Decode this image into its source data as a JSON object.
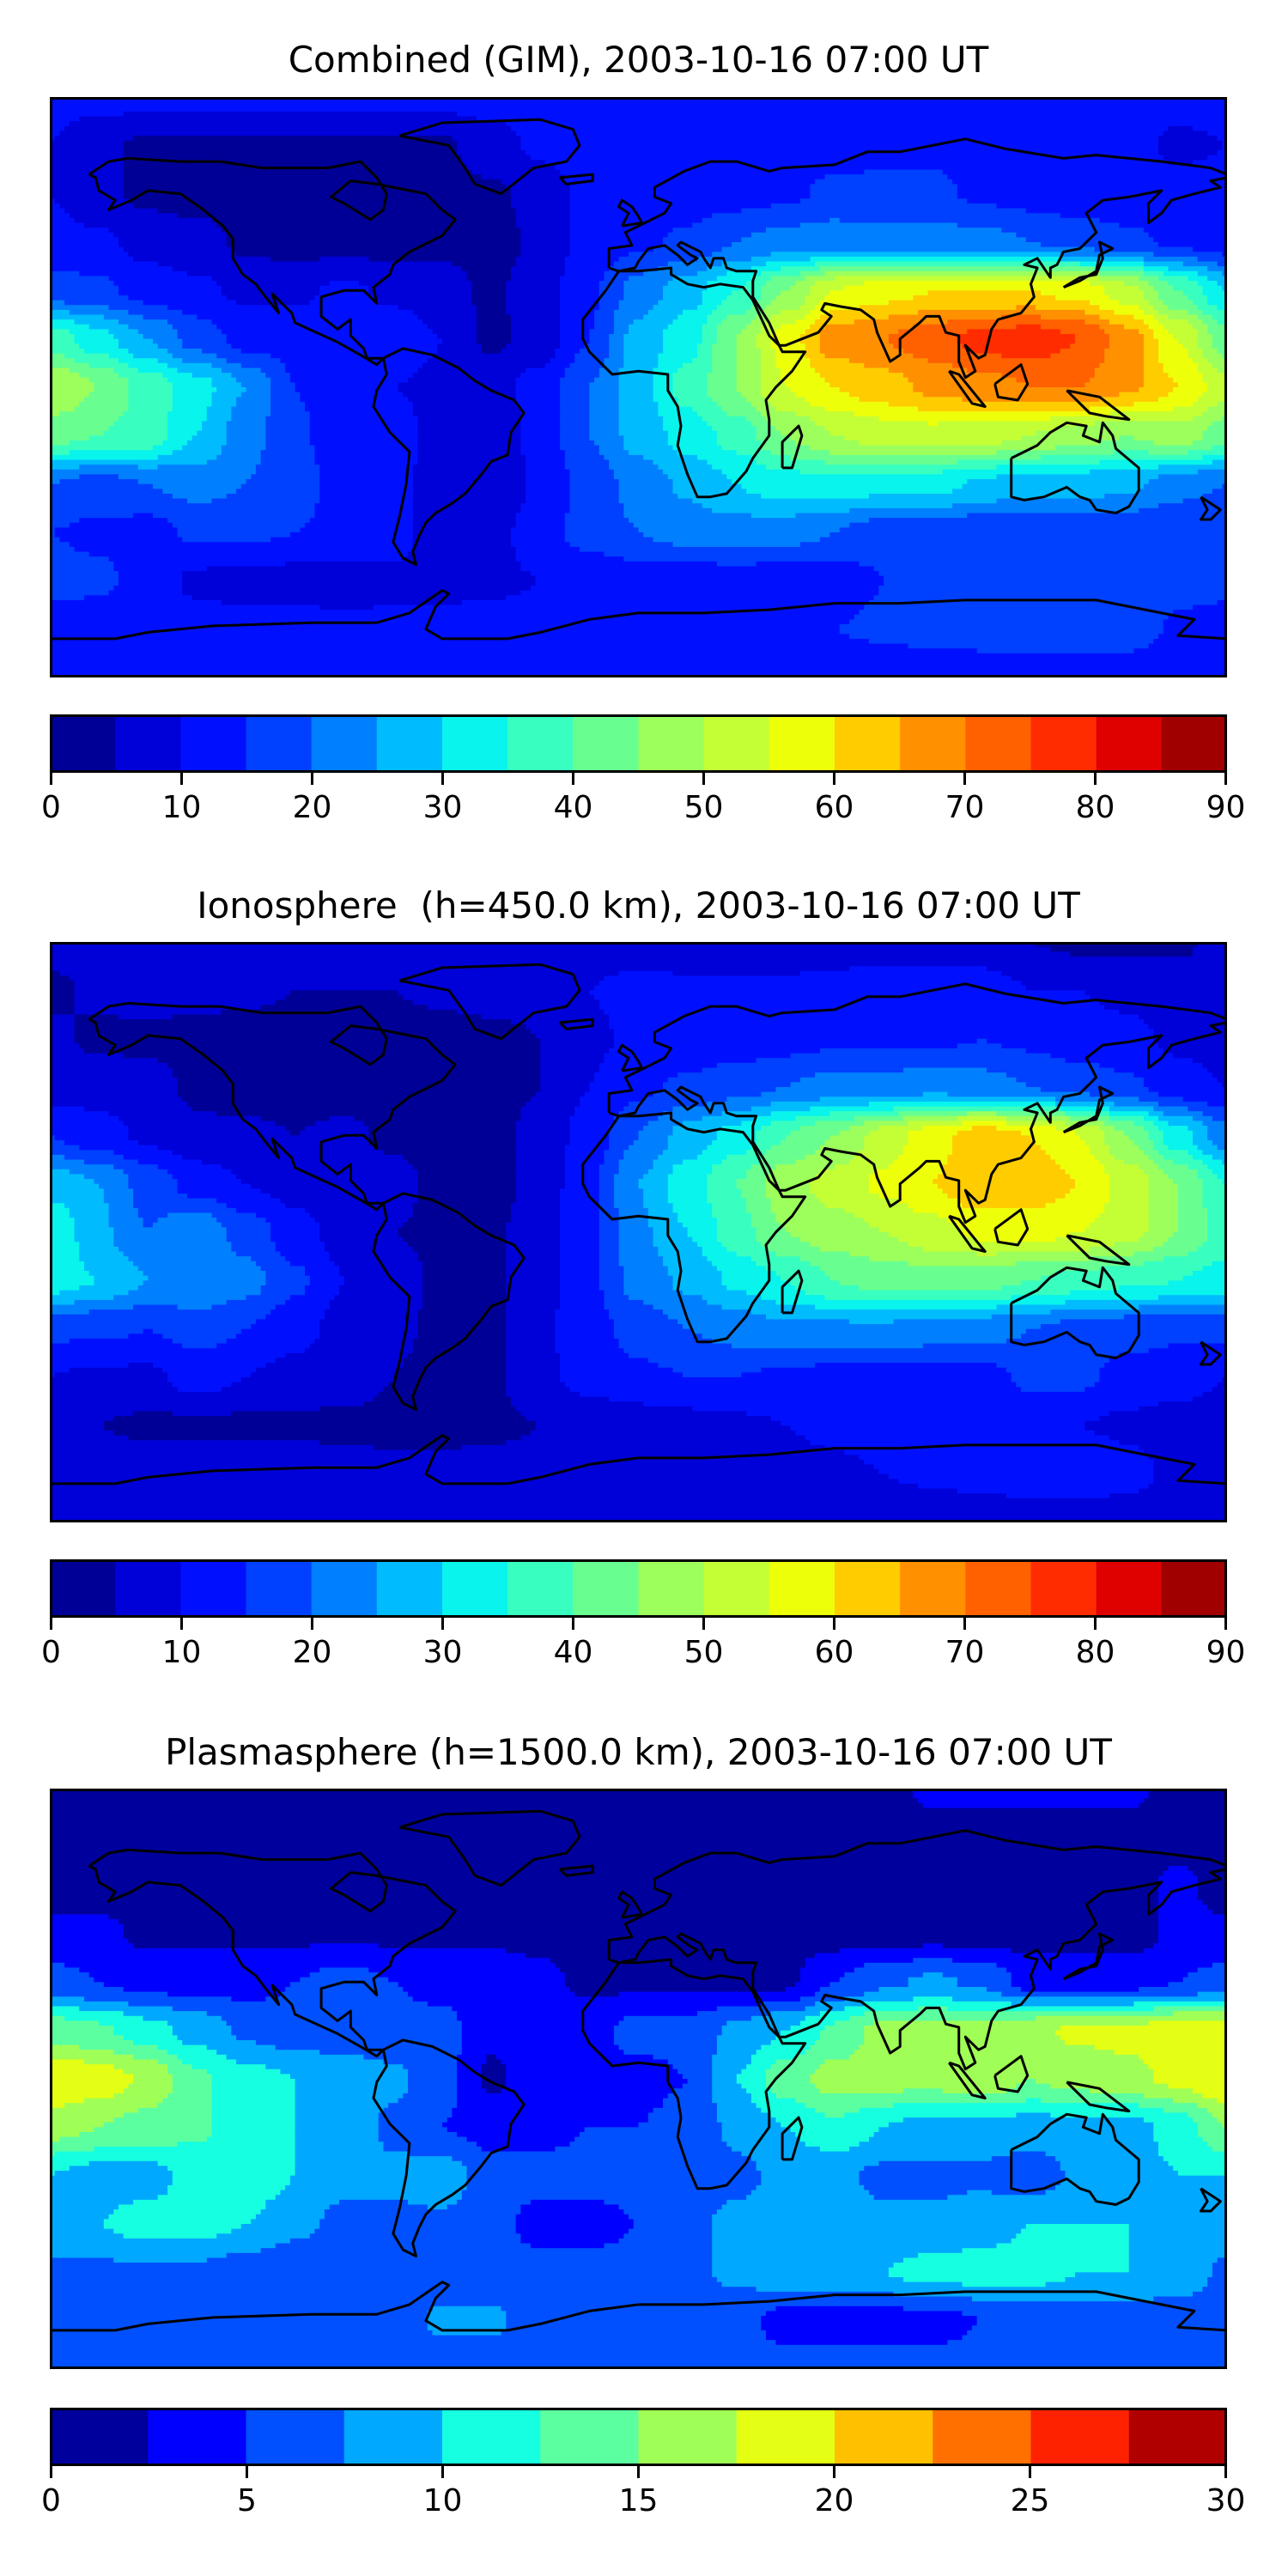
{
  "lon": [
    -180,
    -165,
    -150,
    -135,
    -120,
    -105,
    -90,
    -75,
    -60,
    -45,
    -30,
    -15,
    0,
    15,
    30,
    45,
    60,
    75,
    90,
    105,
    120,
    135,
    150,
    165,
    180
  ],
  "lat": [
    90,
    75,
    60,
    45,
    30,
    15,
    0,
    -15,
    -30,
    -45,
    -60,
    -75,
    -90
  ],
  "chart_data": [
    {
      "type": "heatmap",
      "title": "Combined (GIM), 2003-10-16 07:00 UT",
      "xlim": [
        -180,
        180
      ],
      "ylim": [
        -90,
        90
      ],
      "levels": [
        0,
        5,
        10,
        15,
        20,
        25,
        30,
        35,
        40,
        45,
        50,
        55,
        60,
        65,
        70,
        75,
        80,
        85,
        90
      ],
      "colors": [
        "#000096",
        "#0000d8",
        "#0010ff",
        "#0040ff",
        "#0080ff",
        "#00bcff",
        "#08f4ec",
        "#38ffc0",
        "#68ff90",
        "#9cff5c",
        "#c4ff36",
        "#eeff0a",
        "#ffcc00",
        "#ff9000",
        "#ff6000",
        "#ff2c00",
        "#df0000",
        "#a00000"
      ],
      "colorbar_ticks": [
        "0",
        "10",
        "20",
        "30",
        "40",
        "50",
        "60",
        "70",
        "80",
        "90"
      ],
      "values": [
        [
          12,
          12,
          12,
          12,
          12,
          12,
          12,
          12,
          12,
          12,
          12,
          12,
          12,
          12,
          12,
          12,
          12,
          12,
          12,
          12,
          12,
          12,
          12,
          12,
          12
        ],
        [
          10,
          6,
          4,
          4,
          4,
          4,
          4,
          4,
          4,
          8,
          11,
          12,
          12,
          12,
          12,
          13,
          13,
          14,
          14,
          12,
          12,
          12,
          12,
          9,
          10
        ],
        [
          10,
          6,
          4,
          3,
          3,
          3,
          3,
          3,
          4,
          4,
          7,
          12,
          12,
          12,
          13,
          14,
          16,
          16,
          16,
          14,
          13,
          12,
          12,
          12,
          12
        ],
        [
          12,
          11,
          8,
          7,
          4,
          3,
          3,
          3,
          4,
          3,
          6,
          12,
          14,
          16,
          20,
          22,
          23,
          22,
          22,
          22,
          20,
          18,
          16,
          14,
          12
        ],
        [
          17,
          16,
          13,
          11,
          9,
          9,
          11,
          9,
          7,
          4,
          8,
          14,
          22,
          28,
          35,
          45,
          55,
          58,
          60,
          60,
          60,
          58,
          52,
          40,
          30
        ],
        [
          38,
          32,
          25,
          18,
          13,
          13,
          12,
          13,
          10,
          4,
          7,
          15,
          27,
          33,
          45,
          57,
          68,
          70,
          73,
          77,
          78,
          75,
          67,
          55,
          42
        ],
        [
          50,
          45,
          38,
          32,
          25,
          15,
          12,
          10,
          9,
          8,
          12,
          20,
          28,
          37,
          45,
          55,
          60,
          63,
          66,
          68,
          70,
          70,
          66,
          60,
          52
        ],
        [
          42,
          40,
          38,
          30,
          22,
          16,
          12,
          12,
          8,
          6,
          12,
          20,
          27,
          32,
          37,
          45,
          50,
          52,
          53,
          52,
          50,
          47,
          45,
          48,
          42
        ],
        [
          20,
          18,
          20,
          22,
          20,
          17,
          13,
          12,
          7,
          5,
          11,
          17,
          22,
          26,
          30,
          33,
          33,
          32,
          32,
          29,
          27,
          27,
          26,
          22,
          20
        ],
        [
          15,
          14,
          13,
          16,
          16,
          15,
          14,
          12,
          7,
          8,
          13,
          17,
          20,
          22,
          23,
          22,
          20,
          17,
          17,
          16,
          16,
          17,
          16,
          15,
          15
        ],
        [
          17,
          16,
          13,
          9,
          8,
          8,
          8,
          9,
          9,
          9,
          10,
          11,
          12,
          12,
          12,
          12,
          12,
          15,
          17,
          18,
          18,
          18,
          18,
          17,
          17
        ],
        [
          12,
          12,
          12,
          12,
          12,
          12,
          11,
          11,
          11,
          12,
          12,
          12,
          12,
          13,
          13,
          14,
          15,
          16,
          17,
          18,
          20,
          20,
          18,
          14,
          12
        ],
        [
          11,
          11,
          11,
          11,
          11,
          11,
          11,
          11,
          11,
          11,
          11,
          11,
          11,
          11,
          11,
          11,
          11,
          11,
          11,
          11,
          11,
          11,
          11,
          11,
          11
        ]
      ]
    },
    {
      "type": "heatmap",
      "title": "Ionosphere  (h=450.0 km), 2003-10-16 07:00 UT",
      "xlim": [
        -180,
        180
      ],
      "ylim": [
        -90,
        90
      ],
      "levels": [
        0,
        5,
        10,
        15,
        20,
        25,
        30,
        35,
        40,
        45,
        50,
        55,
        60,
        65,
        70,
        75,
        80,
        85,
        90
      ],
      "colors": [
        "#000096",
        "#0000d8",
        "#0010ff",
        "#0040ff",
        "#0080ff",
        "#00bcff",
        "#08f4ec",
        "#38ffc0",
        "#68ff90",
        "#9cff5c",
        "#c4ff36",
        "#eeff0a",
        "#ffcc00",
        "#ff9000",
        "#ff6000",
        "#ff2c00",
        "#df0000",
        "#a00000"
      ],
      "colorbar_ticks": [
        "0",
        "10",
        "20",
        "30",
        "40",
        "50",
        "60",
        "70",
        "80",
        "90"
      ],
      "values": [
        [
          7,
          7,
          7,
          7,
          7,
          7,
          7,
          7,
          7,
          7,
          7,
          7,
          7,
          7,
          7,
          7,
          7,
          7,
          7,
          6,
          5,
          4,
          4,
          4,
          7
        ],
        [
          4,
          6,
          7,
          7,
          6,
          5,
          5,
          5,
          6,
          8,
          8,
          10,
          12,
          11,
          11,
          11,
          12,
          13,
          13,
          13,
          10,
          10,
          9,
          8,
          6
        ],
        [
          6,
          4,
          4,
          3,
          3,
          3,
          3,
          3,
          3,
          3,
          5,
          9,
          11,
          11,
          12,
          13,
          14,
          14,
          14,
          15,
          14,
          12,
          11,
          9,
          8
        ],
        [
          8,
          8,
          7,
          4,
          3,
          3,
          3,
          3,
          3,
          3,
          5,
          10,
          14,
          16,
          18,
          20,
          22,
          22,
          23,
          22,
          20,
          18,
          16,
          12,
          10
        ],
        [
          15,
          12,
          9,
          6,
          6,
          5,
          6,
          4,
          3,
          3,
          7,
          12,
          20,
          27,
          32,
          40,
          45,
          52,
          58,
          63,
          60,
          55,
          45,
          32,
          22
        ],
        [
          28,
          25,
          18,
          13,
          10,
          8,
          7,
          7,
          3,
          3,
          7,
          14,
          25,
          33,
          40,
          48,
          52,
          56,
          60,
          65,
          63,
          60,
          53,
          45,
          35
        ],
        [
          35,
          26,
          20,
          24,
          18,
          12,
          8,
          5,
          4,
          4,
          8,
          14,
          24,
          30,
          38,
          45,
          48,
          50,
          53,
          56,
          57,
          55,
          52,
          45,
          38
        ],
        [
          33,
          30,
          25,
          25,
          22,
          16,
          10,
          7,
          4,
          4,
          8,
          14,
          22,
          26,
          31,
          35,
          40,
          42,
          43,
          42,
          40,
          38,
          36,
          35,
          33
        ],
        [
          16,
          16,
          15,
          17,
          15,
          12,
          8,
          6,
          4,
          4,
          9,
          13,
          17,
          20,
          22,
          24,
          24,
          24,
          23,
          22,
          20,
          18,
          17,
          16,
          16
        ],
        [
          10,
          9,
          9,
          12,
          10,
          8,
          7,
          5,
          3,
          4,
          9,
          12,
          14,
          15,
          15,
          14,
          13,
          12,
          12,
          13,
          16,
          16,
          13,
          12,
          10
        ],
        [
          7,
          5,
          4,
          4,
          4,
          4,
          4,
          4,
          4,
          4,
          5,
          6,
          7,
          8,
          9,
          10,
          11,
          12,
          12,
          12,
          11,
          10,
          9,
          8,
          7
        ],
        [
          6,
          8,
          9,
          9,
          8,
          8,
          7,
          6,
          6,
          7,
          7,
          8,
          8,
          8,
          8,
          8,
          9,
          10,
          11,
          12,
          14,
          15,
          12,
          8,
          6
        ],
        [
          6,
          6,
          6,
          6,
          6,
          6,
          6,
          6,
          6,
          6,
          6,
          6,
          6,
          6,
          6,
          6,
          6,
          6,
          6,
          6,
          6,
          6,
          6,
          6,
          6
        ]
      ]
    },
    {
      "type": "heatmap",
      "title": "Plasmasphere (h=1500.0 km), 2003-10-16 07:00 UT",
      "xlim": [
        -180,
        180
      ],
      "ylim": [
        -90,
        90
      ],
      "levels": [
        0,
        2.5,
        5,
        7.5,
        10,
        12.5,
        15,
        17.5,
        20,
        22.5,
        25,
        27.5,
        30
      ],
      "colors": [
        "#00009c",
        "#0000ff",
        "#0050ff",
        "#00a8ff",
        "#16ffe0",
        "#5cffa0",
        "#a0ff56",
        "#e4ff14",
        "#ffc000",
        "#ff7000",
        "#ff2200",
        "#b00000"
      ],
      "colorbar_ticks": [
        "0",
        "5",
        "10",
        "15",
        "20",
        "25",
        "30"
      ],
      "values": [
        [
          1.5,
          1.5,
          1.5,
          1.5,
          1.5,
          1.5,
          1.5,
          1.5,
          1.5,
          1.5,
          1.5,
          1.5,
          1.5,
          1.5,
          1.5,
          1.5,
          1.5,
          1.5,
          3,
          3,
          3,
          3,
          3,
          1.5,
          1.5
        ],
        [
          1.5,
          1.5,
          1.5,
          1.5,
          1.5,
          1.5,
          1.5,
          1.5,
          1.5,
          1.5,
          1.5,
          1.5,
          1.5,
          1.5,
          1.5,
          1.5,
          1.5,
          1.5,
          1.5,
          1.5,
          1.5,
          1.5,
          1.5,
          1.5,
          1.5
        ],
        [
          1.5,
          1.5,
          1.5,
          1.5,
          1.5,
          1.5,
          1.5,
          1.5,
          1.5,
          1.5,
          1.5,
          1.5,
          1.5,
          1.5,
          1.5,
          1.5,
          1.5,
          1.5,
          1.5,
          1.5,
          1.5,
          1.5,
          1.5,
          3,
          1.5
        ],
        [
          3,
          3,
          2,
          2,
          2,
          2,
          2,
          2,
          2,
          2,
          2,
          1.5,
          1.5,
          1.5,
          1.5,
          1.5,
          1.5,
          1.5,
          1.5,
          1.5,
          1.5,
          1.5,
          1.5,
          3,
          3
        ],
        [
          6,
          5,
          4,
          4,
          4,
          5,
          6,
          5,
          4,
          4,
          3,
          2,
          2,
          2,
          2,
          2,
          5,
          7,
          8,
          7,
          4,
          4,
          4,
          5,
          6
        ],
        [
          14,
          13,
          11,
          9,
          7,
          6,
          6,
          6,
          6,
          3,
          4,
          4,
          6,
          6,
          8,
          10,
          13,
          16,
          16,
          16,
          17,
          18,
          18,
          19,
          19
        ],
        [
          20,
          19,
          17,
          13,
          11,
          10,
          9,
          8,
          6,
          2,
          4,
          5,
          4,
          5,
          10,
          14,
          16,
          16,
          16,
          17,
          15,
          16,
          17,
          18,
          20
        ],
        [
          16,
          15,
          14,
          13,
          11,
          10,
          9,
          7,
          5,
          4,
          4,
          5,
          5,
          6,
          8,
          10,
          12,
          10,
          9,
          9,
          9,
          9,
          9,
          11,
          15
        ],
        [
          10,
          9,
          9,
          11,
          12,
          10,
          8,
          8,
          9,
          6,
          6,
          6,
          6,
          6,
          7,
          8,
          8,
          7,
          7,
          7,
          6,
          8,
          9,
          10,
          10
        ],
        [
          9,
          10,
          11,
          11,
          10,
          8,
          7,
          7,
          7,
          6,
          4,
          4,
          5,
          7,
          8,
          9,
          9,
          8,
          8,
          9,
          10,
          10,
          10,
          10,
          9
        ],
        [
          7,
          7,
          7,
          7,
          6,
          6,
          6,
          6,
          6,
          6,
          6,
          6,
          6,
          7,
          8,
          9,
          9,
          10,
          11,
          11,
          11,
          10,
          10,
          9,
          7
        ],
        [
          6,
          6,
          6,
          6,
          6,
          6,
          6,
          6,
          8,
          8,
          6,
          6,
          6,
          6,
          6,
          4,
          4,
          4,
          4,
          5,
          6,
          6,
          6,
          6,
          6
        ],
        [
          6,
          6,
          6,
          6,
          6,
          6,
          6,
          6,
          6,
          6,
          6,
          6,
          6,
          6,
          6,
          6,
          6,
          6,
          6,
          6,
          6,
          6,
          6,
          6,
          6
        ]
      ]
    }
  ]
}
